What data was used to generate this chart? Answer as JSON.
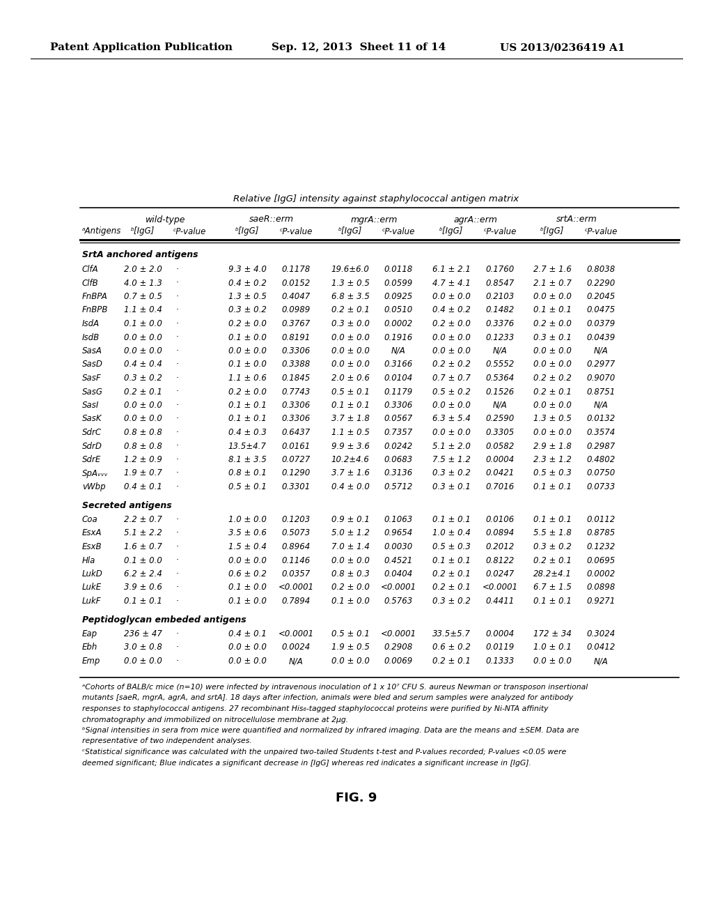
{
  "header_line1": "Relative [IgG] intensity against staphylococcal antigen matrix",
  "section1_header": "SrtA anchored antigens",
  "section1_rows": [
    [
      "ClfA",
      "2.0 ± 2.0",
      "·",
      "9.3 ± 4.0",
      "0.1178",
      "19.6±6.0",
      "0.0118",
      "6.1 ± 2.1",
      "0.1760",
      "2.7 ± 1.6",
      "0.8038"
    ],
    [
      "ClfB",
      "4.0 ± 1.3",
      "·",
      "0.4 ± 0.2",
      "0.0152",
      "1.3 ± 0.5",
      "0.0599",
      "4.7 ± 4.1",
      "0.8547",
      "2.1 ± 0.7",
      "0.2290"
    ],
    [
      "FnBPA",
      "0.7 ± 0.5",
      "·",
      "1.3 ± 0.5",
      "0.4047",
      "6.8 ± 3.5",
      "0.0925",
      "0.0 ± 0.0",
      "0.2103",
      "0.0 ± 0.0",
      "0.2045"
    ],
    [
      "FnBPB",
      "1.1 ± 0.4",
      "·",
      "0.3 ± 0.2",
      "0.0989",
      "0.2 ± 0.1",
      "0.0510",
      "0.4 ± 0.2",
      "0.1482",
      "0.1 ± 0.1",
      "0.0475"
    ],
    [
      "IsdA",
      "0.1 ± 0.0",
      "·",
      "0.2 ± 0.0",
      "0.3767",
      "0.3 ± 0.0",
      "0.0002",
      "0.2 ± 0.0",
      "0.3376",
      "0.2 ± 0.0",
      "0.0379"
    ],
    [
      "IsdB",
      "0.0 ± 0.0",
      "·",
      "0.1 ± 0.0",
      "0.8191",
      "0.0 ± 0.0",
      "0.1916",
      "0.0 ± 0.0",
      "0.1233",
      "0.3 ± 0.1",
      "0.0439"
    ],
    [
      "SasA",
      "0.0 ± 0.0",
      "·",
      "0.0 ± 0.0",
      "0.3306",
      "0.0 ± 0.0",
      "N/A",
      "0.0 ± 0.0",
      "N/A",
      "0.0 ± 0.0",
      "N/A"
    ],
    [
      "SasD",
      "0.4 ± 0.4",
      "·",
      "0.1 ± 0.0",
      "0.3388",
      "0.0 ± 0.0",
      "0.3166",
      "0.2 ± 0.2",
      "0.5552",
      "0.0 ± 0.0",
      "0.2977"
    ],
    [
      "SasF",
      "0.3 ± 0.2",
      "·",
      "1.1 ± 0.6",
      "0.1845",
      "2.0 ± 0.6",
      "0.0104",
      "0.7 ± 0.7",
      "0.5364",
      "0.2 ± 0.2",
      "0.9070"
    ],
    [
      "SasG",
      "0.2 ± 0.1",
      "·",
      "0.2 ± 0.0",
      "0.7743",
      "0.5 ± 0.1",
      "0.1179",
      "0.5 ± 0.2",
      "0.1526",
      "0.2 ± 0.1",
      "0.8751"
    ],
    [
      "SasI",
      "0.0 ± 0.0",
      "·",
      "0.1 ± 0.1",
      "0.3306",
      "0.1 ± 0.1",
      "0.3306",
      "0.0 ± 0.0",
      "N/A",
      "0.0 ± 0.0",
      "N/A"
    ],
    [
      "SasK",
      "0.0 ± 0.0",
      "·",
      "0.1 ± 0.1",
      "0.3306",
      "3.7 ± 1.8",
      "0.0567",
      "6.3 ± 5.4",
      "0.2590",
      "1.3 ± 0.5",
      "0.0132"
    ],
    [
      "SdrC",
      "0.8 ± 0.8",
      "·",
      "0.4 ± 0.3",
      "0.6437",
      "1.1 ± 0.5",
      "0.7357",
      "0.0 ± 0.0",
      "0.3305",
      "0.0 ± 0.0",
      "0.3574"
    ],
    [
      "SdrD",
      "0.8 ± 0.8",
      "·",
      "13.5±4.7",
      "0.0161",
      "9.9 ± 3.6",
      "0.0242",
      "5.1 ± 2.0",
      "0.0582",
      "2.9 ± 1.8",
      "0.2987"
    ],
    [
      "SdrE",
      "1.2 ± 0.9",
      "·",
      "8.1 ± 3.5",
      "0.0727",
      "10.2±4.6",
      "0.0683",
      "7.5 ± 1.2",
      "0.0004",
      "2.3 ± 1.2",
      "0.4802"
    ],
    [
      "SpAᵥᵥᵥ",
      "1.9 ± 0.7",
      "·",
      "0.8 ± 0.1",
      "0.1290",
      "3.7 ± 1.6",
      "0.3136",
      "0.3 ± 0.2",
      "0.0421",
      "0.5 ± 0.3",
      "0.0750"
    ],
    [
      "vWbp",
      "0.4 ± 0.1",
      "·",
      "0.5 ± 0.1",
      "0.3301",
      "0.4 ± 0.0",
      "0.5712",
      "0.3 ± 0.1",
      "0.7016",
      "0.1 ± 0.1",
      "0.0733"
    ]
  ],
  "section2_header": "Secreted antigens",
  "section2_rows": [
    [
      "Coa",
      "2.2 ± 0.7",
      "·",
      "1.0 ± 0.0",
      "0.1203",
      "0.9 ± 0.1",
      "0.1063",
      "0.1 ± 0.1",
      "0.0106",
      "0.1 ± 0.1",
      "0.0112"
    ],
    [
      "EsxA",
      "5.1 ± 2.2",
      "·",
      "3.5 ± 0.6",
      "0.5073",
      "5.0 ± 1.2",
      "0.9654",
      "1.0 ± 0.4",
      "0.0894",
      "5.5 ± 1.8",
      "0.8785"
    ],
    [
      "EsxB",
      "1.6 ± 0.7",
      "·",
      "1.5 ± 0.4",
      "0.8964",
      "7.0 ± 1.4",
      "0.0030",
      "0.5 ± 0.3",
      "0.2012",
      "0.3 ± 0.2",
      "0.1232"
    ],
    [
      "Hla",
      "0.1 ± 0.0",
      "·",
      "0.0 ± 0.0",
      "0.1146",
      "0.0 ± 0.0",
      "0.4521",
      "0.1 ± 0.1",
      "0.8122",
      "0.2 ± 0.1",
      "0.0695"
    ],
    [
      "LukD",
      "6.2 ± 2.4",
      "·",
      "0.6 ± 0.2",
      "0.0357",
      "0.8 ± 0.3",
      "0.0404",
      "0.2 ± 0.1",
      "0.0247",
      "28.2±4.1",
      "0.0002"
    ],
    [
      "LukE",
      "3.9 ± 0.6",
      "·",
      "0.1 ± 0.0",
      "<0.0001",
      "0.2 ± 0.0",
      "<0.0001",
      "0.2 ± 0.1",
      "<0.0001",
      "6.7 ± 1.5",
      "0.0898"
    ],
    [
      "LukF",
      "0.1 ± 0.1",
      "·",
      "0.1 ± 0.0",
      "0.7894",
      "0.1 ± 0.0",
      "0.5763",
      "0.3 ± 0.2",
      "0.4411",
      "0.1 ± 0.1",
      "0.9271"
    ]
  ],
  "section3_header": "Peptidoglycan embeded antigens",
  "section3_rows": [
    [
      "Eap",
      "236 ± 47",
      "·",
      "0.4 ± 0.1",
      "<0.0001",
      "0.5 ± 0.1",
      "<0.0001",
      "33.5±5.7",
      "0.0004",
      "172 ± 34",
      "0.3024"
    ],
    [
      "Ebh",
      "3.0 ± 0.8",
      "·",
      "0.0 ± 0.0",
      "0.0024",
      "1.9 ± 0.5",
      "0.2908",
      "0.6 ± 0.2",
      "0.0119",
      "1.0 ± 0.1",
      "0.0412"
    ],
    [
      "Emp",
      "0.0 ± 0.0",
      "·",
      "0.0 ± 0.0",
      "N/A",
      "0.0 ± 0.0",
      "0.0069",
      "0.2 ± 0.1",
      "0.1333",
      "0.0 ± 0.0",
      "N/A"
    ]
  ],
  "footnotes": [
    "ᵃCohorts of BALB/c mice (n=10) were infected by intravenous inoculation of 1 x 10⁷ CFU S. aureus Newman or transposon insertional",
    "mutants [saeR, mgrA, agrA, and srtA]. 18 days after infection, animals were bled and serum samples were analyzed for antibody",
    "responses to staphylococcal antigens. 27 recombinant His₆-tagged staphylococcal proteins were purified by Ni-NTA affinity",
    "chromatography and immobilized on nitrocellulose membrane at 2μg.",
    "ᵇSignal intensities in sera from mice were quantified and normalized by infrared imaging. Data are the means and ±SEM. Data are",
    "representative of two independent analyses.",
    "ᶜStatistical significance was calculated with the unpaired two-tailed Students t-test and P-values recorded; P-values <0.05 were",
    "deemed significant; Blue indicates a significant decrease in [IgG] whereas red indicates a significant increase in [IgG]."
  ],
  "fig_label": "FIG. 9"
}
